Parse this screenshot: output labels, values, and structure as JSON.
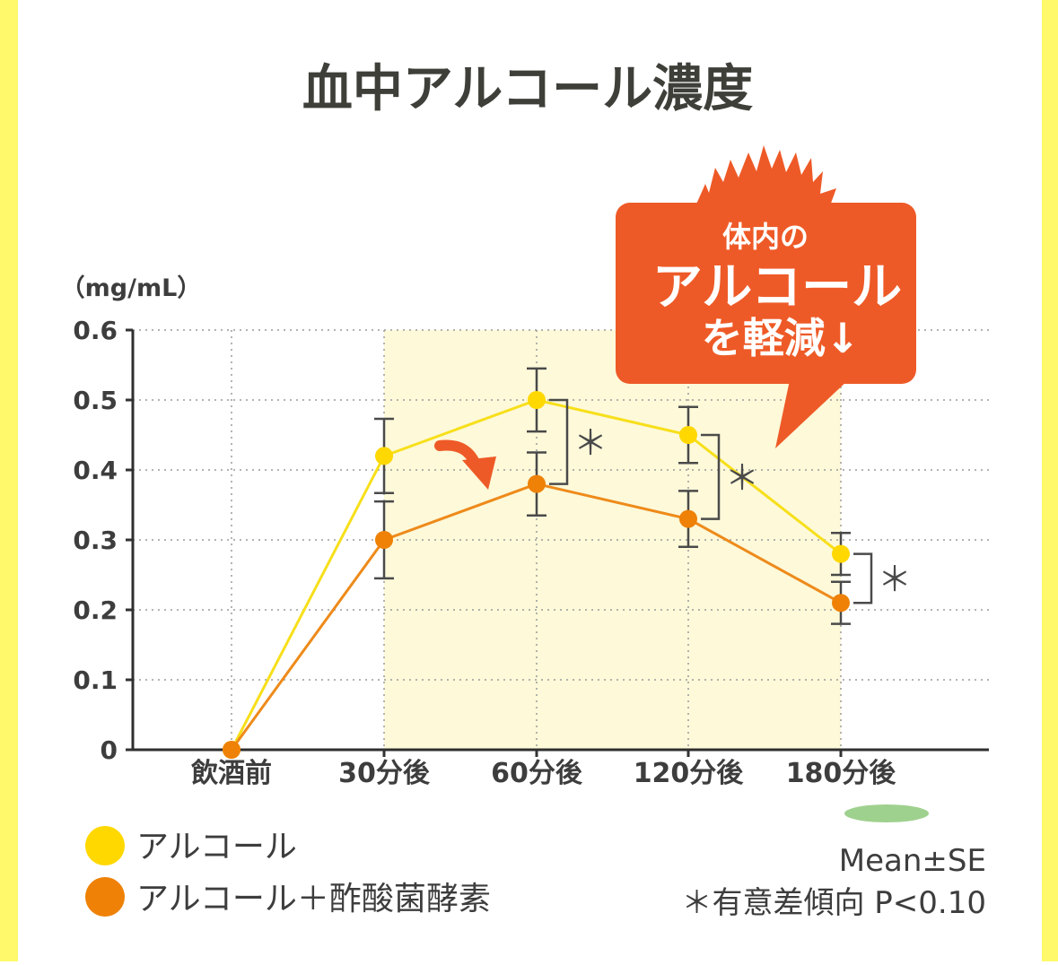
{
  "chart_data": {
    "type": "line",
    "title": "血中アルコール濃度",
    "unit_label": "（mg/mL）",
    "categories": [
      "飲酒前",
      "30分後",
      "60分後",
      "120分後",
      "180分後"
    ],
    "y_ticks": [
      "0.6",
      "0.5",
      "0.4",
      "0.3",
      "0.2",
      "0.1",
      "0"
    ],
    "ylim": [
      0,
      0.6
    ],
    "grid": true,
    "series": [
      {
        "name": "アルコール",
        "color": "#ffd800",
        "line_color": "#f7df1a",
        "values": [
          0,
          0.42,
          0.5,
          0.45,
          0.28
        ],
        "se": [
          0,
          0.053,
          0.045,
          0.04,
          0.03
        ]
      },
      {
        "name": "アルコール＋酢酸菌酵素",
        "color": "#ee8106",
        "line_color": "#ee8a1a",
        "values": [
          0,
          0.3,
          0.38,
          0.33,
          0.21
        ],
        "se": [
          0,
          0.055,
          0.045,
          0.04,
          0.03
        ]
      }
    ],
    "significance_mark": "＊",
    "significant_points": [
      "60分後",
      "120分後",
      "180分後"
    ],
    "shaded_range": [
      "30分後",
      "180分後"
    ],
    "shade_color": "#fdf9d9",
    "callout": {
      "line1": "体内の",
      "line2": "アルコール",
      "line3": "を軽減↓",
      "color": "#ee5a27"
    },
    "notes": {
      "mean_se": "Mean±SE",
      "significance": "＊有意差傾向 P<0.10"
    },
    "legend_position": "bottom-left"
  }
}
